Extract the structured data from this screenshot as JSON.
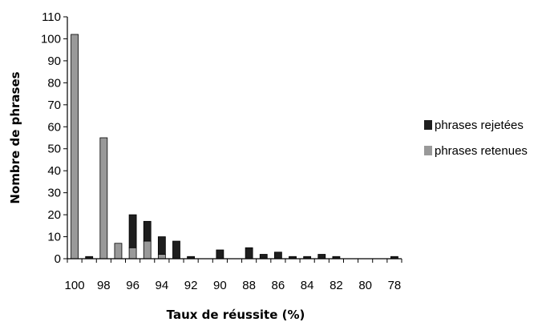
{
  "chart_data": {
    "type": "bar",
    "stacked": true,
    "title": "",
    "xlabel": "Taux de réussite (%)",
    "ylabel": "Nombre de phrases",
    "ylim": [
      0,
      110
    ],
    "yticks": [
      0,
      10,
      20,
      30,
      40,
      50,
      60,
      70,
      80,
      90,
      100,
      110
    ],
    "grid": false,
    "legend_position": "right",
    "categories": [
      100,
      99,
      98,
      97,
      96,
      95,
      94,
      93,
      92,
      91,
      90,
      89,
      88,
      87,
      86,
      85,
      84,
      83,
      82,
      81,
      80,
      79,
      78
    ],
    "xtick_labels": [
      "100",
      "98",
      "96",
      "94",
      "92",
      "90",
      "88",
      "86",
      "84",
      "82",
      "80",
      "78"
    ],
    "series": [
      {
        "name": "phrases retenues",
        "color": "#999999",
        "values": [
          102,
          0,
          55,
          7,
          5,
          8,
          2,
          0,
          0,
          0,
          0,
          0,
          0,
          0,
          0,
          0,
          0,
          0,
          0,
          0,
          0,
          0,
          0
        ]
      },
      {
        "name": "phrases rejetées",
        "color": "#1e1e1e",
        "values": [
          0,
          1,
          0,
          0,
          15,
          9,
          8,
          8,
          1,
          0,
          4,
          0,
          5,
          2,
          3,
          1,
          1,
          2,
          1,
          0,
          0,
          0,
          1
        ]
      }
    ],
    "legend": [
      {
        "label": "phrases rejetées",
        "color": "#1e1e1e"
      },
      {
        "label": "phrases retenues",
        "color": "#999999"
      }
    ]
  }
}
